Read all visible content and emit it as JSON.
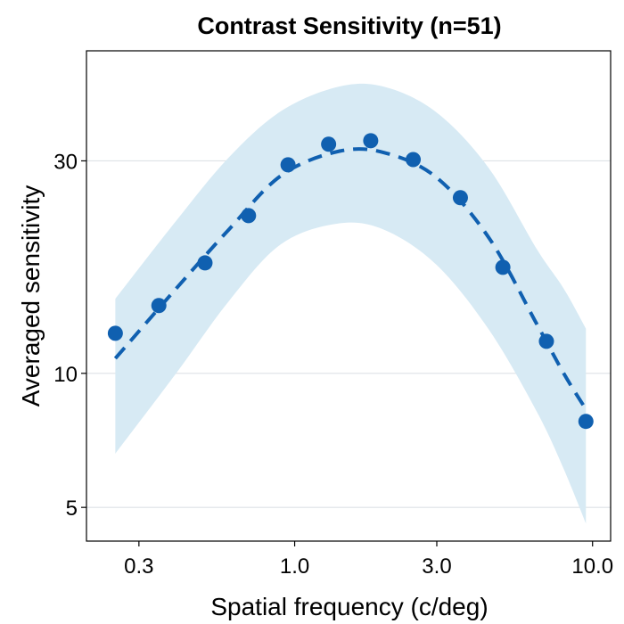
{
  "chart_data": {
    "type": "scatter",
    "title": "Contrast Sensitivity (n=51)",
    "xlabel": "Spatial frequency (c/deg)",
    "ylabel": "Averaged sensitivity",
    "x_scale": "log",
    "y_scale": "log",
    "xlim": [
      0.2,
      11.5
    ],
    "ylim": [
      4.2,
      53
    ],
    "x_ticks": [
      {
        "value": 0.3,
        "label": "0.3"
      },
      {
        "value": 1.0,
        "label": "1.0"
      },
      {
        "value": 3.0,
        "label": "3.0"
      },
      {
        "value": 10.0,
        "label": "10.0"
      }
    ],
    "y_ticks": [
      {
        "value": 5,
        "label": "5"
      },
      {
        "value": 10,
        "label": "10"
      },
      {
        "value": 30,
        "label": "30"
      }
    ],
    "grid": {
      "horizontal": true,
      "vertical": false
    },
    "series": [
      {
        "kind": "points",
        "color": "#1060B0",
        "x": [
          0.25,
          0.35,
          0.5,
          0.7,
          0.95,
          1.3,
          1.8,
          2.5,
          3.6,
          5.0,
          7.0,
          9.5
        ],
        "y": [
          12.3,
          14.2,
          17.7,
          22.6,
          29.4,
          32.7,
          33.3,
          30.2,
          24.8,
          17.3,
          11.8,
          7.8
        ]
      },
      {
        "kind": "fit",
        "style": "dashed",
        "color": "#1060B0",
        "x": [
          0.25,
          0.4,
          0.6,
          0.9,
          1.4,
          2.0,
          3.0,
          4.5,
          6.5,
          8.0,
          9.5
        ],
        "y": [
          10.8,
          15.5,
          21.0,
          27.8,
          31.5,
          31.3,
          27.5,
          20.1,
          12.9,
          10.0,
          8.3
        ]
      },
      {
        "kind": "band",
        "color": "#D7EAF4",
        "x": [
          0.25,
          0.4,
          0.6,
          0.9,
          1.4,
          2.0,
          3.0,
          4.5,
          6.5,
          8.0,
          9.5
        ],
        "upper": [
          14.7,
          22.0,
          30.5,
          38.8,
          44.0,
          44.0,
          38.5,
          28.8,
          19.0,
          15.5,
          12.6
        ],
        "lower": [
          6.6,
          10.0,
          14.5,
          19.5,
          21.7,
          21.0,
          17.5,
          12.5,
          8.2,
          6.1,
          4.6
        ]
      }
    ]
  }
}
